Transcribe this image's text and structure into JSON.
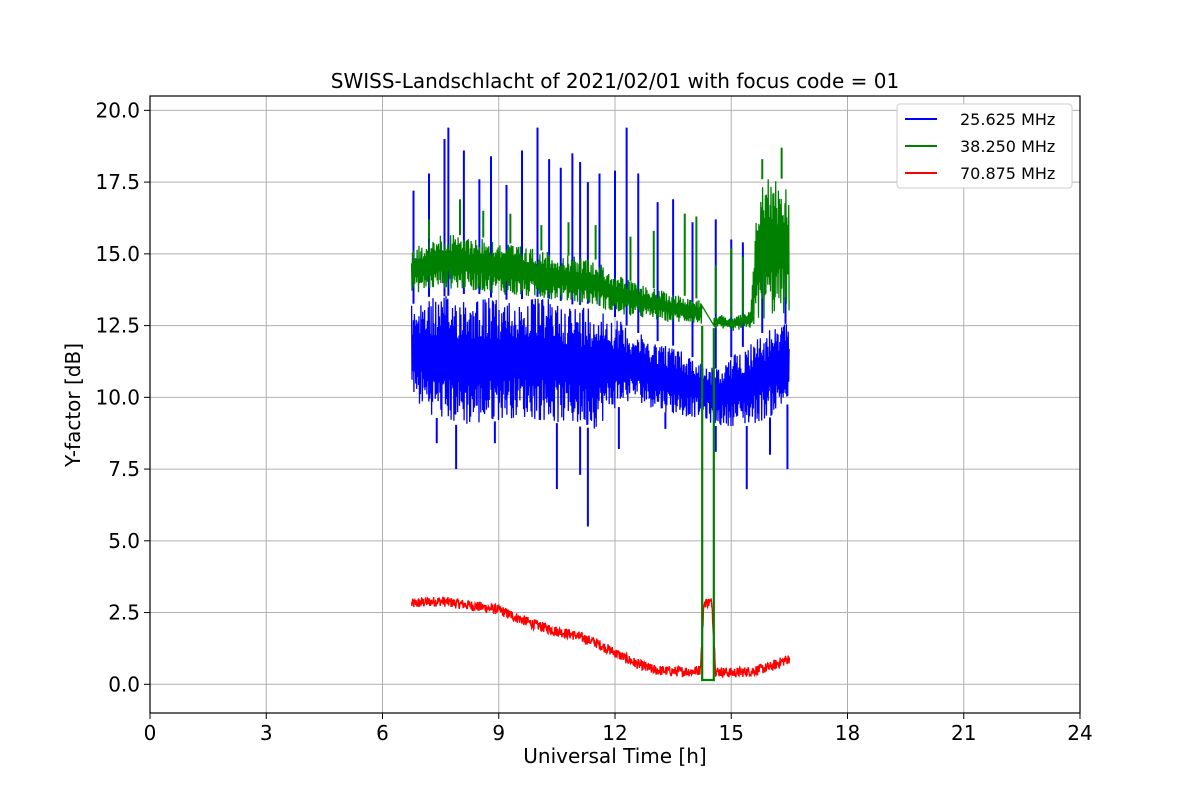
{
  "chart_data": {
    "type": "line",
    "title": "SWISS-Landschlacht of 2021/02/01 with focus code = 01",
    "xlabel": "Universal Time [h]",
    "ylabel": "Y-factor [dB]",
    "xlim": [
      0,
      24
    ],
    "ylim": [
      -1.0,
      20.5
    ],
    "xticks": [
      0,
      3,
      6,
      9,
      12,
      15,
      18,
      21,
      24
    ],
    "xtick_labels": [
      "0",
      "3",
      "6",
      "9",
      "12",
      "15",
      "18",
      "21",
      "24"
    ],
    "yticks": [
      0.0,
      2.5,
      5.0,
      7.5,
      10.0,
      12.5,
      15.0,
      17.5,
      20.0
    ],
    "ytick_labels": [
      "0.0",
      "2.5",
      "5.0",
      "7.5",
      "10.0",
      "12.5",
      "15.0",
      "17.5",
      "20.0"
    ],
    "grid": true,
    "legend_position": "top-right",
    "series": [
      {
        "name": "25.625 MHz",
        "color": "#0000ff",
        "x": [
          6.75,
          7.0,
          7.5,
          8.0,
          8.5,
          9.0,
          9.5,
          10.0,
          10.5,
          11.0,
          11.5,
          12.0,
          12.5,
          13.0,
          13.5,
          14.0,
          14.2,
          14.6,
          15.0,
          15.5,
          16.0,
          16.5
        ],
        "low": [
          10.0,
          9.6,
          9.2,
          9.0,
          9.0,
          9.2,
          9.3,
          9.2,
          9.1,
          9.0,
          8.9,
          9.6,
          9.9,
          9.6,
          9.4,
          9.3,
          9.3,
          9.0,
          9.0,
          9.0,
          9.3,
          9.8
        ],
        "high": [
          13.2,
          13.5,
          13.5,
          13.6,
          13.6,
          13.4,
          13.4,
          13.5,
          13.4,
          13.2,
          13.3,
          12.8,
          12.3,
          12.0,
          11.8,
          11.4,
          11.3,
          11.0,
          11.4,
          12.0,
          12.4,
          12.6
        ],
        "spikes_x": [
          6.8,
          7.2,
          7.6,
          7.7,
          8.1,
          8.5,
          8.8,
          9.2,
          9.6,
          10.0,
          10.3,
          10.6,
          10.9,
          11.1,
          11.3,
          11.6,
          12.0,
          12.3,
          12.6,
          13.1,
          13.5,
          14.0,
          14.6,
          15.0,
          15.3,
          15.8,
          16.4
        ],
        "spikes_high": [
          17.2,
          17.8,
          19.0,
          19.4,
          18.6,
          17.6,
          18.4,
          17.4,
          18.6,
          19.4,
          18.3,
          18.0,
          18.5,
          18.2,
          17.5,
          17.8,
          17.9,
          19.4,
          17.8,
          16.8,
          16.9,
          16.1,
          16.2,
          15.5,
          15.4,
          14.9,
          14.6
        ],
        "dips_x": [
          7.4,
          7.9,
          8.9,
          10.5,
          11.1,
          11.3,
          12.1,
          13.3,
          14.6,
          15.4,
          16.0,
          16.45
        ],
        "dips_low": [
          8.4,
          7.5,
          8.4,
          6.8,
          7.3,
          5.5,
          8.2,
          8.9,
          8.1,
          6.8,
          8.0,
          7.5
        ]
      },
      {
        "name": "38.250 MHz",
        "color": "#008000",
        "x": [
          6.75,
          7.5,
          8.5,
          9.5,
          10.5,
          11.5,
          12.0,
          12.5,
          13.0,
          13.5,
          14.0,
          14.2,
          14.6,
          15.0,
          15.5,
          15.7,
          16.0,
          16.5
        ],
        "low": [
          13.6,
          13.8,
          13.7,
          13.5,
          13.4,
          13.2,
          12.9,
          12.8,
          12.7,
          12.6,
          12.6,
          12.5,
          12.4,
          12.3,
          12.4,
          12.6,
          12.8,
          12.9
        ],
        "high": [
          15.2,
          15.7,
          15.6,
          15.3,
          15.0,
          14.8,
          14.3,
          14.0,
          13.8,
          13.6,
          13.5,
          13.4,
          12.9,
          12.8,
          13.0,
          17.5,
          17.8,
          17.5
        ],
        "spikes_x": [
          7.2,
          8.0,
          8.6,
          9.3,
          10.1,
          10.8,
          11.5,
          12.4,
          13.0,
          13.8,
          14.1,
          14.6,
          15.0,
          15.3,
          15.8,
          16.3
        ],
        "spikes_high": [
          16.2,
          16.9,
          16.5,
          16.4,
          16.0,
          16.1,
          16.0,
          15.6,
          15.8,
          16.4,
          16.3,
          14.6,
          15.2,
          14.9,
          18.3,
          18.7
        ],
        "gap_x": [
          14.25,
          14.55
        ],
        "gap_value": 0.15
      },
      {
        "name": "70.875 MHz",
        "color": "#ff0000",
        "x": [
          6.75,
          7.0,
          7.5,
          8.0,
          8.5,
          9.0,
          9.5,
          10.0,
          10.5,
          11.0,
          11.5,
          12.0,
          12.5,
          13.0,
          13.5,
          14.0,
          14.2,
          14.3,
          14.5,
          14.6,
          15.0,
          15.5,
          16.0,
          16.5
        ],
        "y": [
          2.8,
          2.85,
          2.9,
          2.8,
          2.7,
          2.6,
          2.3,
          2.05,
          1.85,
          1.7,
          1.45,
          1.1,
          0.75,
          0.5,
          0.45,
          0.45,
          0.5,
          2.85,
          2.85,
          0.45,
          0.4,
          0.45,
          0.6,
          0.9
        ],
        "noise": 0.18
      }
    ]
  }
}
